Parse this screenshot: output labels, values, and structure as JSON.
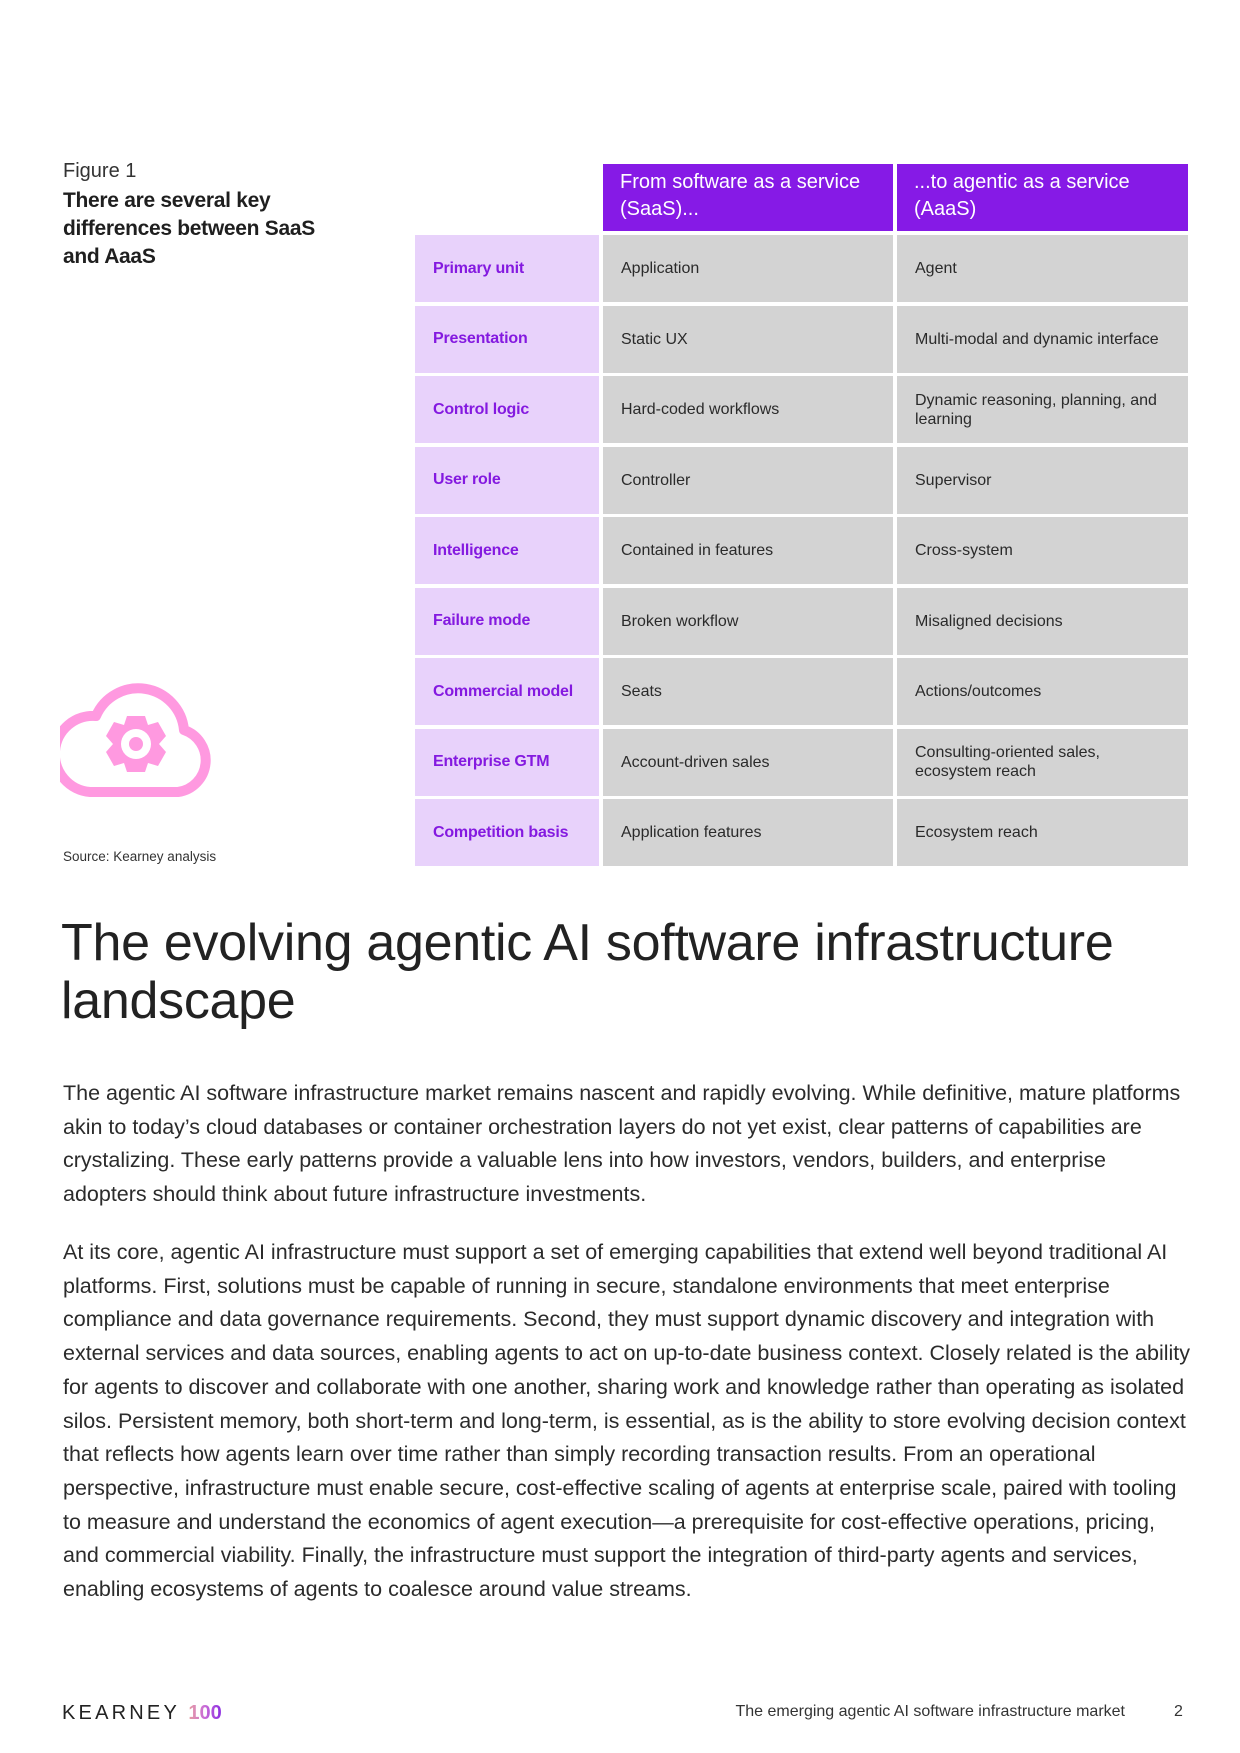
{
  "figure": {
    "label": "Figure 1",
    "title": "There are several key differences between SaaS and AaaS",
    "source": "Source: Kearney analysis",
    "icon": "cloud-gear-icon",
    "icon_color": "#ff99e0"
  },
  "table": {
    "headers": [
      "From software as a service (SaaS)...",
      "...to agentic as a service (AaaS)"
    ],
    "header_color": "#861ae6",
    "label_color": "#8419e0",
    "rows": [
      {
        "label": "Primary unit",
        "saas": "Application",
        "aaas": "Agent"
      },
      {
        "label": "Presentation",
        "saas": "Static UX",
        "aaas": "Multi-modal and dynamic interface"
      },
      {
        "label": "Control logic",
        "saas": "Hard-coded workflows",
        "aaas": "Dynamic reasoning, planning, and learning"
      },
      {
        "label": "User role",
        "saas": "Controller",
        "aaas": "Supervisor"
      },
      {
        "label": "Intelligence",
        "saas": "Contained in features",
        "aaas": "Cross-system"
      },
      {
        "label": "Failure mode",
        "saas": "Broken workflow",
        "aaas": "Misaligned decisions"
      },
      {
        "label": "Commercial model",
        "saas": "Seats",
        "aaas": "Actions/outcomes"
      },
      {
        "label": "Enterprise GTM",
        "saas": "Account-driven sales",
        "aaas": "Consulting-oriented sales, ecosystem reach"
      },
      {
        "label": "Competition basis",
        "saas": "Application features",
        "aaas": "Ecosystem reach"
      }
    ]
  },
  "section": {
    "heading": "The evolving agentic AI software infrastructure landscape",
    "paragraphs": [
      "The agentic AI software infrastructure market remains nascent and rapidly evolving. While definitive, mature platforms akin to today’s cloud databases or container orchestration layers do not yet exist, clear patterns of capabilities are crystalizing. These early patterns provide a valuable lens into how investors, vendors, builders, and enterprise adopters should think about future infrastructure investments.",
      "At its core, agentic AI infrastructure must support a set of emerging capabilities that extend well beyond traditional AI platforms. First, solutions must be capable of running in secure, standalone environments that meet enterprise compliance and data governance requirements. Second, they must support dynamic discovery and integration with external services and data sources, enabling agents to act on up-to-date business context. Closely related is the ability for agents to discover and collaborate with one another, sharing work and knowledge rather than operating as isolated silos. Persistent memory, both short-term and long-term, is essential, as is the ability to store evolving decision context that reflects how agents learn over time rather than simply recording transaction results. From an operational perspective, infrastructure must enable secure, cost-effective scaling of agents at enterprise scale, paired with tooling to measure and understand the economics of agent execution—a prerequisite for cost-effective operations, pricing, and commercial viability. Finally, the infrastructure must support the integration of third-party agents and services, enabling ecosystems of agents to coalesce around value streams."
    ]
  },
  "footer": {
    "logo_word": "KEARNEY",
    "logo_number": "100",
    "document_title": "The emerging agentic AI software infrastructure market",
    "page_number": "2"
  }
}
